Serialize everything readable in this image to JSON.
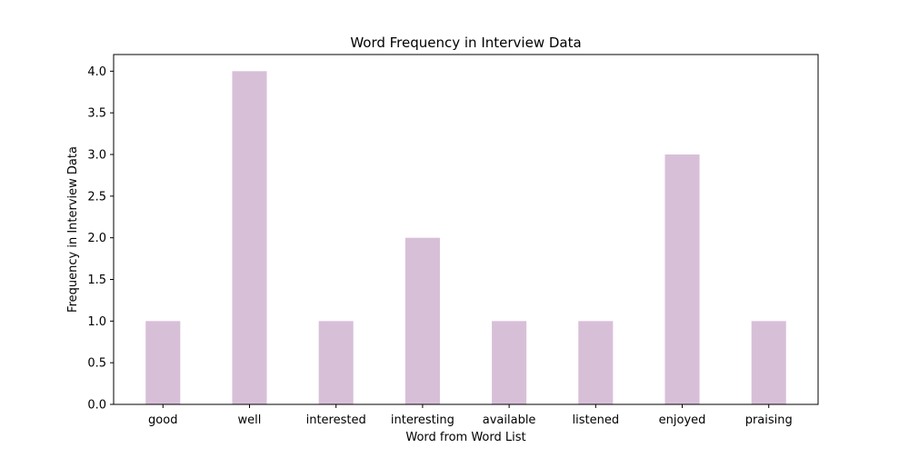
{
  "chart_data": {
    "type": "bar",
    "title": "Word Frequency in Interview Data",
    "xlabel": "Word from Word List",
    "ylabel": "Frequency in Interview Data",
    "categories": [
      "good",
      "well",
      "interested",
      "interesting",
      "available",
      "listened",
      "enjoyed",
      "praising"
    ],
    "values": [
      1,
      4,
      1,
      2,
      1,
      1,
      3,
      1
    ],
    "ylim": [
      0,
      4.2
    ],
    "yticks": [
      "0.0",
      "0.5",
      "1.0",
      "1.5",
      "2.0",
      "2.5",
      "3.0",
      "3.5",
      "4.0"
    ],
    "bar_color": "#d8bfd8",
    "grid": false,
    "legend": "none"
  }
}
